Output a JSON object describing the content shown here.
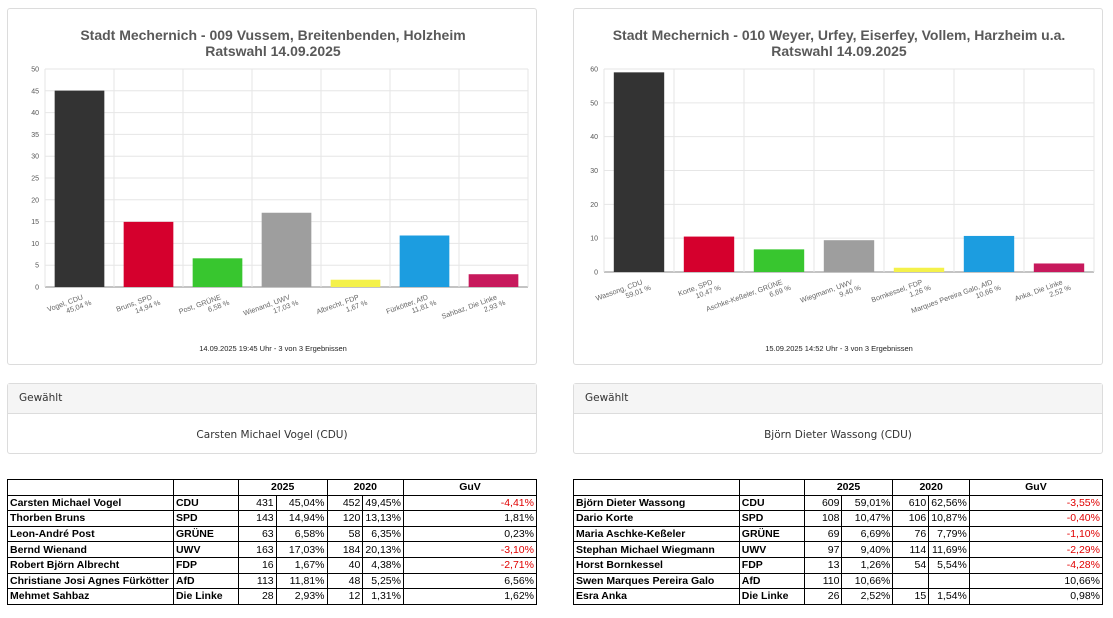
{
  "panels": [
    {
      "chart_data": {
        "type": "bar",
        "title": "Stadt Mechernich - 009 Vussem, Breitenbenden, Holzheim",
        "subtitle": "Ratswahl 14.09.2025",
        "categories": [
          "Vogel, CDU",
          "Bruns, SPD",
          "Post, GRÜNE",
          "Wienand, UWV",
          "Albrecht, FDP",
          "Fürkötter, AfD",
          "Sahbaz, Die Linke"
        ],
        "percent_labels": [
          "45,04 %",
          "14,94 %",
          "6,58 %",
          "17,03 %",
          "1,67 %",
          "11,81 %",
          "2,93 %"
        ],
        "values": [
          45.04,
          14.94,
          6.58,
          17.03,
          1.67,
          11.81,
          2.93
        ],
        "colors": [
          "#333333",
          "#d5002d",
          "#38c62f",
          "#9e9e9e",
          "#f4f14a",
          "#1c9de0",
          "#c7195c"
        ],
        "ylim": [
          0,
          50
        ],
        "yticks": [
          0,
          5,
          10,
          15,
          20,
          25,
          30,
          35,
          40,
          45,
          50
        ],
        "grid": true,
        "footnote": "14.09.2025 19:45 Uhr - 3 von 3 Ergebnissen"
      },
      "elected": {
        "header": "Gewählt",
        "name": "Carsten Michael Vogel (CDU)"
      },
      "table": {
        "year_a": "2025",
        "year_b": "2020",
        "guv": "GuV",
        "rows": [
          {
            "name": "Carsten Michael Vogel",
            "party": "CDU",
            "v2025": "431",
            "p2025": "45,04%",
            "v2020": "452",
            "p2020": "49,45%",
            "guv": "-4,41%",
            "neg": true
          },
          {
            "name": "Thorben Bruns",
            "party": "SPD",
            "v2025": "143",
            "p2025": "14,94%",
            "v2020": "120",
            "p2020": "13,13%",
            "guv": "1,81%",
            "neg": false
          },
          {
            "name": "Leon-André Post",
            "party": "GRÜNE",
            "v2025": "63",
            "p2025": "6,58%",
            "v2020": "58",
            "p2020": "6,35%",
            "guv": "0,23%",
            "neg": false
          },
          {
            "name": "Bernd Wienand",
            "party": "UWV",
            "v2025": "163",
            "p2025": "17,03%",
            "v2020": "184",
            "p2020": "20,13%",
            "guv": "-3,10%",
            "neg": true
          },
          {
            "name": "Robert Björn Albrecht",
            "party": "FDP",
            "v2025": "16",
            "p2025": "1,67%",
            "v2020": "40",
            "p2020": "4,38%",
            "guv": "-2,71%",
            "neg": true
          },
          {
            "name": "Christiane Josi Agnes Fürkötter",
            "party": "AfD",
            "v2025": "113",
            "p2025": "11,81%",
            "v2020": "48",
            "p2020": "5,25%",
            "guv": "6,56%",
            "neg": false
          },
          {
            "name": "Mehmet Sahbaz",
            "party": "Die Linke",
            "v2025": "28",
            "p2025": "2,93%",
            "v2020": "12",
            "p2020": "1,31%",
            "guv": "1,62%",
            "neg": false
          }
        ]
      }
    },
    {
      "chart_data": {
        "type": "bar",
        "title": "Stadt Mechernich - 010 Weyer, Urfey, Eiserfey, Vollem, Harzheim u.a.",
        "subtitle": "Ratswahl 14.09.2025",
        "categories": [
          "Wassong, CDU",
          "Korte, SPD",
          "Aschke-Keßeler, GRÜNE",
          "Wiegmann, UWV",
          "Bornkessel, FDP",
          "Marques Pereira Galo, AfD",
          "Anka, Die Linke"
        ],
        "percent_labels": [
          "59,01 %",
          "10,47 %",
          "6,69 %",
          "9,40 %",
          "1,26 %",
          "10,66 %",
          "2,52 %"
        ],
        "values": [
          59.01,
          10.47,
          6.69,
          9.4,
          1.26,
          10.66,
          2.52
        ],
        "colors": [
          "#333333",
          "#d5002d",
          "#38c62f",
          "#9e9e9e",
          "#f4f14a",
          "#1c9de0",
          "#c7195c"
        ],
        "ylim": [
          0,
          60
        ],
        "yticks": [
          0,
          10,
          20,
          30,
          40,
          50,
          60
        ],
        "grid": true,
        "footnote": "15.09.2025 14:52 Uhr - 3 von 3 Ergebnissen"
      },
      "elected": {
        "header": "Gewählt",
        "name": "Björn Dieter Wassong (CDU)"
      },
      "table": {
        "year_a": "2025",
        "year_b": "2020",
        "guv": "GuV",
        "rows": [
          {
            "name": "Björn Dieter Wassong",
            "party": "CDU",
            "v2025": "609",
            "p2025": "59,01%",
            "v2020": "610",
            "p2020": "62,56%",
            "guv": "-3,55%",
            "neg": true
          },
          {
            "name": "Dario Korte",
            "party": "SPD",
            "v2025": "108",
            "p2025": "10,47%",
            "v2020": "106",
            "p2020": "10,87%",
            "guv": "-0,40%",
            "neg": true
          },
          {
            "name": "Maria Aschke-Keßeler",
            "party": "GRÜNE",
            "v2025": "69",
            "p2025": "6,69%",
            "v2020": "76",
            "p2020": "7,79%",
            "guv": "-1,10%",
            "neg": true
          },
          {
            "name": "Stephan Michael Wiegmann",
            "party": "UWV",
            "v2025": "97",
            "p2025": "9,40%",
            "v2020": "114",
            "p2020": "11,69%",
            "guv": "-2,29%",
            "neg": true
          },
          {
            "name": "Horst Bornkessel",
            "party": "FDP",
            "v2025": "13",
            "p2025": "1,26%",
            "v2020": "54",
            "p2020": "5,54%",
            "guv": "-4,28%",
            "neg": true
          },
          {
            "name": "Swen Marques Pereira Galo",
            "party": "AfD",
            "v2025": "110",
            "p2025": "10,66%",
            "v2020": "",
            "p2020": "",
            "guv": "10,66%",
            "neg": false
          },
          {
            "name": "Esra Anka",
            "party": "Die Linke",
            "v2025": "26",
            "p2025": "2,52%",
            "v2020": "15",
            "p2020": "1,54%",
            "guv": "0,98%",
            "neg": false
          }
        ]
      }
    }
  ]
}
